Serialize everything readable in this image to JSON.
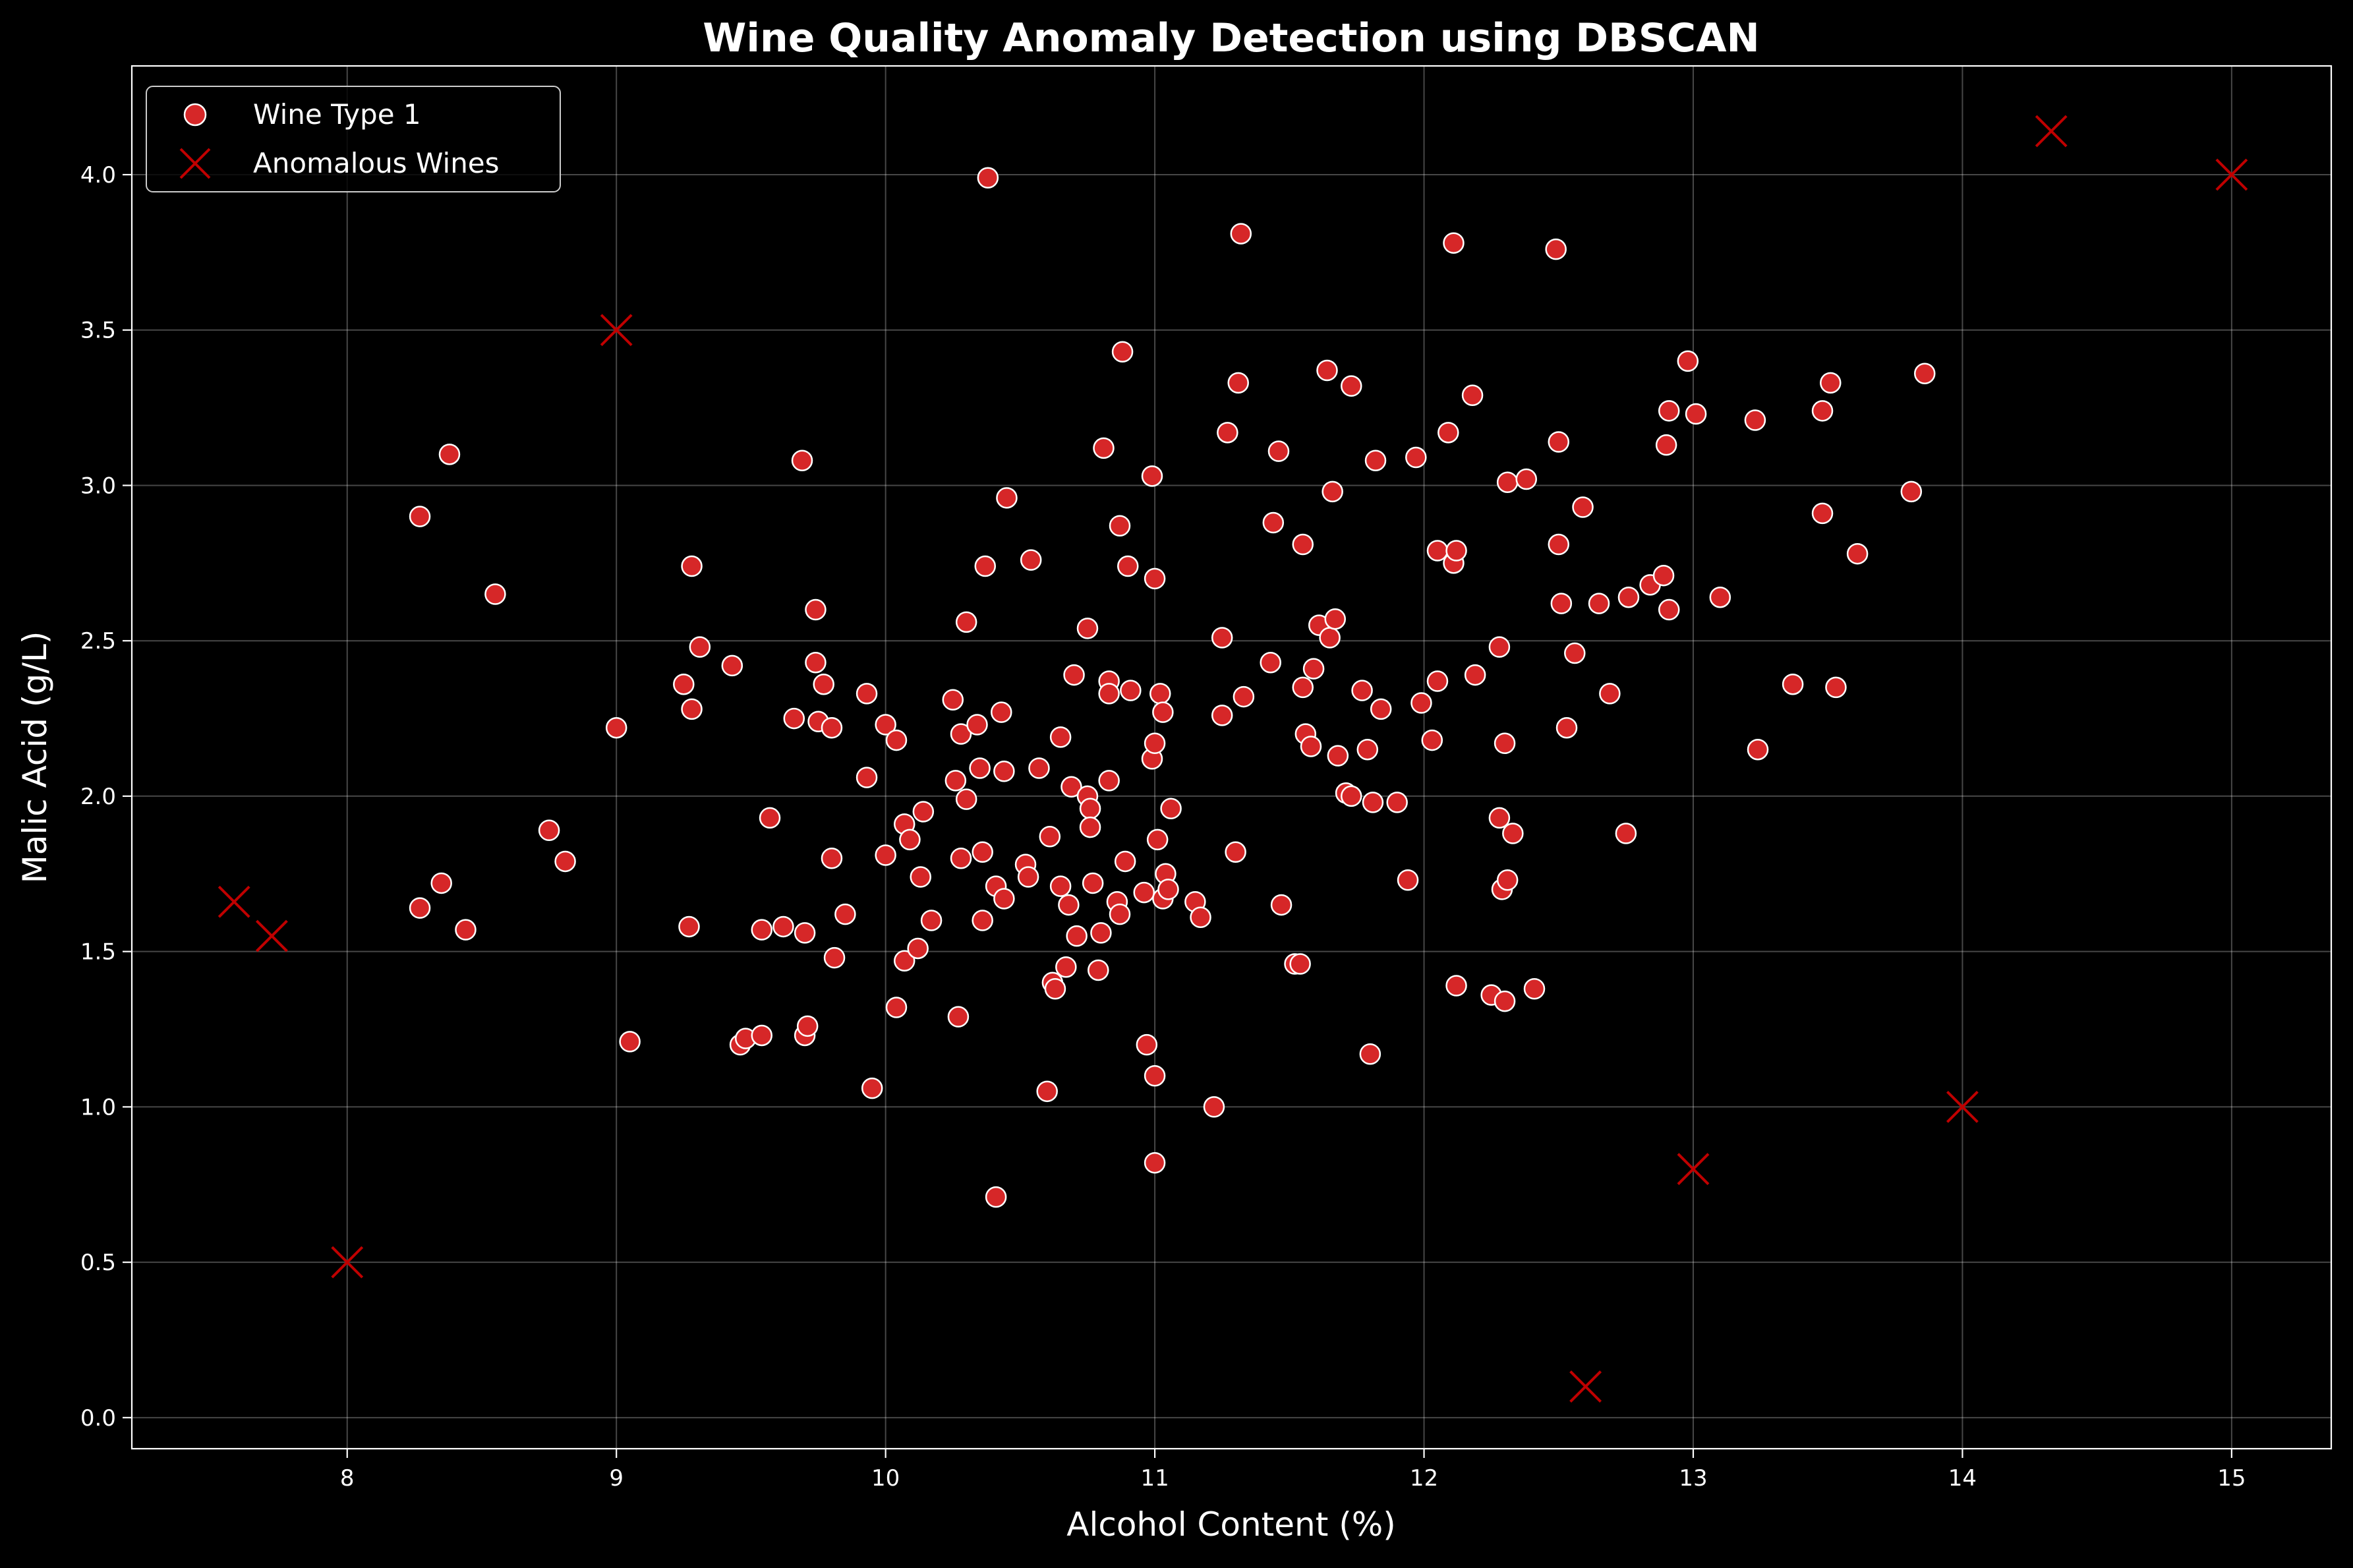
{
  "chart_data": {
    "type": "scatter",
    "title": "Wine Quality Anomaly Detection using DBSCAN",
    "xlabel": "Alcohol Content (%)",
    "ylabel": "Malic Acid (g/L)",
    "xlim": [
      7.2,
      15.37
    ],
    "ylim": [
      -0.1,
      4.35
    ],
    "xticks": [
      8,
      9,
      10,
      11,
      12,
      13,
      14,
      15
    ],
    "yticks": [
      0.0,
      0.5,
      1.0,
      1.5,
      2.0,
      2.5,
      3.0,
      3.5,
      4.0
    ],
    "grid": true,
    "legend_position": "top-left",
    "background": "#000000",
    "series": [
      {
        "name": "Wine Type 1",
        "marker": "circle",
        "color": "#d62728",
        "edge_color": "#ffffff",
        "points": [
          [
            8.27,
            2.9
          ],
          [
            8.38,
            3.1
          ],
          [
            8.55,
            2.65
          ],
          [
            8.27,
            1.64
          ],
          [
            8.35,
            1.72
          ],
          [
            8.44,
            1.57
          ],
          [
            8.75,
            1.89
          ],
          [
            8.81,
            1.79
          ],
          [
            9.0,
            2.22
          ],
          [
            9.05,
            1.21
          ],
          [
            9.25,
            2.36
          ],
          [
            9.28,
            2.28
          ],
          [
            9.28,
            2.74
          ],
          [
            9.31,
            2.48
          ],
          [
            9.27,
            1.58
          ],
          [
            9.43,
            2.42
          ],
          [
            9.46,
            1.2
          ],
          [
            9.48,
            1.22
          ],
          [
            9.54,
            1.23
          ],
          [
            9.54,
            1.57
          ],
          [
            9.57,
            1.93
          ],
          [
            9.62,
            1.58
          ],
          [
            9.66,
            2.25
          ],
          [
            9.69,
            3.08
          ],
          [
            9.7,
            1.56
          ],
          [
            9.7,
            1.23
          ],
          [
            9.71,
            1.26
          ],
          [
            9.74,
            2.43
          ],
          [
            9.74,
            2.6
          ],
          [
            9.75,
            2.24
          ],
          [
            9.77,
            2.36
          ],
          [
            9.8,
            2.22
          ],
          [
            9.8,
            1.8
          ],
          [
            9.81,
            1.48
          ],
          [
            9.85,
            1.62
          ],
          [
            9.93,
            2.33
          ],
          [
            9.93,
            2.06
          ],
          [
            9.95,
            1.06
          ],
          [
            10.0,
            2.23
          ],
          [
            10.0,
            1.81
          ],
          [
            10.04,
            2.18
          ],
          [
            10.04,
            1.32
          ],
          [
            10.07,
            1.91
          ],
          [
            10.07,
            1.47
          ],
          [
            10.09,
            1.86
          ],
          [
            10.12,
            1.51
          ],
          [
            10.13,
            1.74
          ],
          [
            10.14,
            1.95
          ],
          [
            10.17,
            1.6
          ],
          [
            10.25,
            2.31
          ],
          [
            10.26,
            2.05
          ],
          [
            10.27,
            1.29
          ],
          [
            10.28,
            2.2
          ],
          [
            10.28,
            1.8
          ],
          [
            10.3,
            1.99
          ],
          [
            10.3,
            2.56
          ],
          [
            10.34,
            2.23
          ],
          [
            10.35,
            2.09
          ],
          [
            10.36,
            1.82
          ],
          [
            10.36,
            1.6
          ],
          [
            10.37,
            2.74
          ],
          [
            10.38,
            3.99
          ],
          [
            10.41,
            0.71
          ],
          [
            10.41,
            1.71
          ],
          [
            10.43,
            2.27
          ],
          [
            10.44,
            2.08
          ],
          [
            10.44,
            1.67
          ],
          [
            10.45,
            2.96
          ],
          [
            10.52,
            1.78
          ],
          [
            10.53,
            1.74
          ],
          [
            10.54,
            2.76
          ],
          [
            10.57,
            2.09
          ],
          [
            10.6,
            1.05
          ],
          [
            10.61,
            1.87
          ],
          [
            10.62,
            1.4
          ],
          [
            10.63,
            1.38
          ],
          [
            10.65,
            2.19
          ],
          [
            10.65,
            1.71
          ],
          [
            10.67,
            1.45
          ],
          [
            10.68,
            1.65
          ],
          [
            10.69,
            2.03
          ],
          [
            10.7,
            2.39
          ],
          [
            10.71,
            1.55
          ],
          [
            10.75,
            2.54
          ],
          [
            10.75,
            2.0
          ],
          [
            10.76,
            1.96
          ],
          [
            10.76,
            1.9
          ],
          [
            10.77,
            1.72
          ],
          [
            10.79,
            1.44
          ],
          [
            10.8,
            1.56
          ],
          [
            10.81,
            3.12
          ],
          [
            10.83,
            2.37
          ],
          [
            10.83,
            2.33
          ],
          [
            10.83,
            2.05
          ],
          [
            10.86,
            1.66
          ],
          [
            10.87,
            2.87
          ],
          [
            10.87,
            1.62
          ],
          [
            10.88,
            3.43
          ],
          [
            10.89,
            1.79
          ],
          [
            10.9,
            2.74
          ],
          [
            10.91,
            2.34
          ],
          [
            10.96,
            1.69
          ],
          [
            10.97,
            1.2
          ],
          [
            10.99,
            2.12
          ],
          [
            10.99,
            3.03
          ],
          [
            11.0,
            2.7
          ],
          [
            11.0,
            2.17
          ],
          [
            11.0,
            1.1
          ],
          [
            11.0,
            0.82
          ],
          [
            11.01,
            1.86
          ],
          [
            11.02,
            2.33
          ],
          [
            11.03,
            2.27
          ],
          [
            11.03,
            1.67
          ],
          [
            11.04,
            1.75
          ],
          [
            11.05,
            1.7
          ],
          [
            11.06,
            1.96
          ],
          [
            11.15,
            1.66
          ],
          [
            11.17,
            1.61
          ],
          [
            11.22,
            1.0
          ],
          [
            11.25,
            2.51
          ],
          [
            11.25,
            2.26
          ],
          [
            11.27,
            3.17
          ],
          [
            11.3,
            1.82
          ],
          [
            11.31,
            3.33
          ],
          [
            11.32,
            3.81
          ],
          [
            11.33,
            2.32
          ],
          [
            11.43,
            2.43
          ],
          [
            11.44,
            2.88
          ],
          [
            11.46,
            3.11
          ],
          [
            11.47,
            1.65
          ],
          [
            11.52,
            1.46
          ],
          [
            11.54,
            1.46
          ],
          [
            11.55,
            2.35
          ],
          [
            11.55,
            2.81
          ],
          [
            11.56,
            2.2
          ],
          [
            11.58,
            2.16
          ],
          [
            11.59,
            2.41
          ],
          [
            11.61,
            2.55
          ],
          [
            11.64,
            3.37
          ],
          [
            11.65,
            2.51
          ],
          [
            11.66,
            2.98
          ],
          [
            11.67,
            2.57
          ],
          [
            11.68,
            2.13
          ],
          [
            11.71,
            2.01
          ],
          [
            11.73,
            3.32
          ],
          [
            11.73,
            2.0
          ],
          [
            11.77,
            2.34
          ],
          [
            11.79,
            2.15
          ],
          [
            11.8,
            1.17
          ],
          [
            11.81,
            1.98
          ],
          [
            11.82,
            3.08
          ],
          [
            11.84,
            2.28
          ],
          [
            11.9,
            1.98
          ],
          [
            11.94,
            1.73
          ],
          [
            11.97,
            3.09
          ],
          [
            11.99,
            2.3
          ],
          [
            12.03,
            2.18
          ],
          [
            12.05,
            2.37
          ],
          [
            12.05,
            2.79
          ],
          [
            12.09,
            3.17
          ],
          [
            12.11,
            3.78
          ],
          [
            12.11,
            2.75
          ],
          [
            12.12,
            2.79
          ],
          [
            12.12,
            1.39
          ],
          [
            12.18,
            3.29
          ],
          [
            12.19,
            2.39
          ],
          [
            12.25,
            1.36
          ],
          [
            12.28,
            2.48
          ],
          [
            12.28,
            1.93
          ],
          [
            12.29,
            1.7
          ],
          [
            12.3,
            1.34
          ],
          [
            12.3,
            2.17
          ],
          [
            12.31,
            1.73
          ],
          [
            12.31,
            3.01
          ],
          [
            12.33,
            1.88
          ],
          [
            12.38,
            3.02
          ],
          [
            12.41,
            1.38
          ],
          [
            12.49,
            3.76
          ],
          [
            12.5,
            2.81
          ],
          [
            12.5,
            3.14
          ],
          [
            12.51,
            2.62
          ],
          [
            12.53,
            2.22
          ],
          [
            12.56,
            2.46
          ],
          [
            12.59,
            2.93
          ],
          [
            12.65,
            2.62
          ],
          [
            12.69,
            2.33
          ],
          [
            12.75,
            1.88
          ],
          [
            12.76,
            2.64
          ],
          [
            12.84,
            2.68
          ],
          [
            12.89,
            2.71
          ],
          [
            12.9,
            3.13
          ],
          [
            12.91,
            3.24
          ],
          [
            12.91,
            2.6
          ],
          [
            12.98,
            3.4
          ],
          [
            13.01,
            3.23
          ],
          [
            13.1,
            2.64
          ],
          [
            13.23,
            3.21
          ],
          [
            13.24,
            2.15
          ],
          [
            13.37,
            2.36
          ],
          [
            13.48,
            2.91
          ],
          [
            13.48,
            3.24
          ],
          [
            13.51,
            3.33
          ],
          [
            13.53,
            2.35
          ],
          [
            13.61,
            2.78
          ],
          [
            13.81,
            2.98
          ],
          [
            13.86,
            3.36
          ]
        ]
      },
      {
        "name": "Anomalous Wines",
        "marker": "x",
        "color": "#c00000",
        "points": [
          [
            7.58,
            1.66
          ],
          [
            7.72,
            1.55
          ],
          [
            8.0,
            0.5
          ],
          [
            9.0,
            3.5
          ],
          [
            12.6,
            0.1
          ],
          [
            13.0,
            0.8
          ],
          [
            14.0,
            1.0
          ],
          [
            14.33,
            4.14
          ],
          [
            15.0,
            4.0
          ]
        ]
      }
    ]
  }
}
